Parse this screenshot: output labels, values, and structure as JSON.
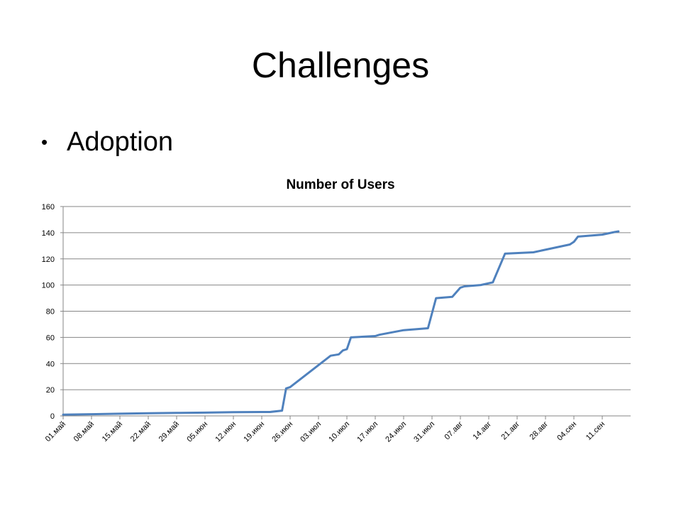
{
  "slide": {
    "title": "Challenges",
    "bullets": [
      "Adoption"
    ]
  },
  "colors": {
    "line": "#4F81BD",
    "grid": "#868686",
    "axis": "#868686",
    "text": "#000000"
  },
  "chart_data": {
    "type": "line",
    "title": "Number of Users",
    "xlabel": "",
    "ylabel": "",
    "ylim": [
      0,
      160
    ],
    "yticks": [
      0,
      20,
      40,
      60,
      80,
      100,
      120,
      140,
      160
    ],
    "xlim": [
      "2012-05-01",
      "2012-09-18"
    ],
    "xtick_dates": [
      "2012-05-01",
      "2012-05-08",
      "2012-05-15",
      "2012-05-22",
      "2012-05-29",
      "2012-06-05",
      "2012-06-12",
      "2012-06-19",
      "2012-06-26",
      "2012-07-03",
      "2012-07-10",
      "2012-07-17",
      "2012-07-24",
      "2012-07-31",
      "2012-08-07",
      "2012-08-14",
      "2012-08-21",
      "2012-08-28",
      "2012-09-04",
      "2012-09-11"
    ],
    "xtick_labels": [
      "01.май",
      "08.май",
      "15.май",
      "22.май",
      "29.май",
      "05.июн",
      "12.июн",
      "19.июн",
      "26.июн",
      "03.июл",
      "10.июл",
      "17.июл",
      "24.июл",
      "31.июл",
      "07.авг",
      "14.авг",
      "21.авг",
      "28.авг",
      "04.сен",
      "11.сен"
    ],
    "grid": true,
    "legend": "none",
    "series": [
      {
        "x": [
          "2012-05-01",
          "2012-05-08",
          "2012-05-15",
          "2012-05-22",
          "2012-05-29",
          "2012-06-05",
          "2012-06-12",
          "2012-06-19",
          "2012-06-21",
          "2012-06-24",
          "2012-06-25",
          "2012-06-26",
          "2012-07-06",
          "2012-07-08",
          "2012-07-09",
          "2012-07-10",
          "2012-07-11",
          "2012-07-17",
          "2012-07-18",
          "2012-07-24",
          "2012-07-30",
          "2012-08-01",
          "2012-08-05",
          "2012-08-07",
          "2012-08-08",
          "2012-08-12",
          "2012-08-15",
          "2012-08-18",
          "2012-08-25",
          "2012-09-03",
          "2012-09-04",
          "2012-09-05",
          "2012-09-11",
          "2012-09-14",
          "2012-09-15"
        ],
        "values": [
          1,
          1.3,
          1.7,
          2,
          2.3,
          2.5,
          2.8,
          3,
          3,
          4,
          21,
          22,
          46,
          47,
          50,
          51,
          60,
          61,
          62,
          65.5,
          67,
          90,
          91,
          98,
          99,
          100,
          102,
          124,
          125,
          131,
          133,
          137,
          138.5,
          140.5,
          141
        ]
      }
    ]
  }
}
